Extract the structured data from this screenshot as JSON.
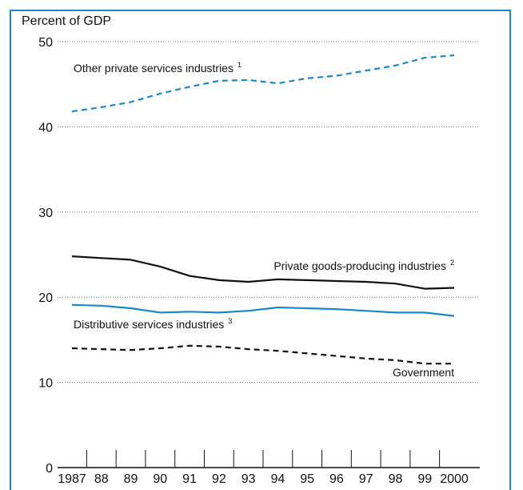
{
  "chart_data": {
    "type": "line",
    "title": "",
    "ylabel": "Percent of GDP",
    "xlabel": "",
    "ylim": [
      0,
      50
    ],
    "yticks": [
      0,
      10,
      20,
      30,
      40,
      50
    ],
    "x": [
      1987,
      1988,
      1989,
      1990,
      1991,
      1992,
      1993,
      1994,
      1995,
      1996,
      1997,
      1998,
      1999,
      2000
    ],
    "xtick_labels": [
      "1987",
      "88",
      "89",
      "90",
      "91",
      "92",
      "93",
      "94",
      "95",
      "96",
      "97",
      "98",
      "99",
      "2000"
    ],
    "grid": "horizontal dotted",
    "series": [
      {
        "name": "Other private services industries",
        "footnote": "1",
        "style": "dashed",
        "color": "#1a88c9",
        "values": [
          41.8,
          42.3,
          42.9,
          43.9,
          44.7,
          45.4,
          45.5,
          45.1,
          45.7,
          46.0,
          46.6,
          47.2,
          48.1,
          48.4
        ]
      },
      {
        "name": "Private goods-producing industries",
        "footnote": "2",
        "style": "solid",
        "color": "#111111",
        "values": [
          24.8,
          24.6,
          24.4,
          23.6,
          22.5,
          22.0,
          21.8,
          22.1,
          22.0,
          21.9,
          21.8,
          21.6,
          21.0,
          21.1
        ]
      },
      {
        "name": "Distributive services industries",
        "footnote": "3",
        "style": "solid",
        "color": "#1a88c9",
        "values": [
          19.1,
          19.0,
          18.7,
          18.2,
          18.3,
          18.2,
          18.4,
          18.8,
          18.7,
          18.6,
          18.4,
          18.2,
          18.2,
          17.8
        ]
      },
      {
        "name": "Government",
        "footnote": "",
        "style": "dashed",
        "color": "#111111",
        "values": [
          14.0,
          13.9,
          13.8,
          14.0,
          14.3,
          14.2,
          13.9,
          13.7,
          13.4,
          13.1,
          12.8,
          12.6,
          12.2,
          12.2
        ]
      }
    ]
  }
}
